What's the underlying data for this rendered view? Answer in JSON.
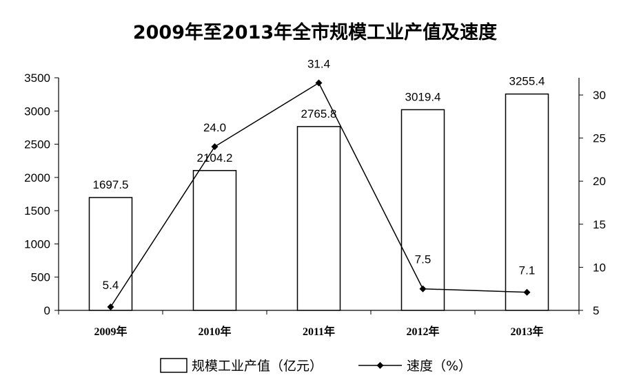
{
  "chart_data": {
    "type": "bar",
    "title": "2009年至2013年全市规模工业产值及速度",
    "categories": [
      "2009年",
      "2010年",
      "2011年",
      "2012年",
      "2013年"
    ],
    "series": [
      {
        "name": "规模工业产值（亿元）",
        "type": "bar",
        "axis": "left",
        "values": [
          1697.5,
          2104.2,
          2765.8,
          3019.4,
          3255.4
        ],
        "labels": [
          "1697.5",
          "2104.2",
          "2765.8",
          "3019.4",
          "3255.4"
        ]
      },
      {
        "name": "速度（%）",
        "type": "line",
        "axis": "right",
        "values": [
          5.4,
          24.0,
          31.4,
          7.5,
          7.1
        ],
        "labels": [
          "5.4",
          "24.0",
          "31.4",
          "7.5",
          "7.1"
        ]
      }
    ],
    "left_axis": {
      "ylim": [
        0,
        3500
      ],
      "ticks": [
        "0",
        "500",
        "1000",
        "1500",
        "2000",
        "2500",
        "3000",
        "3500"
      ]
    },
    "right_axis": {
      "ylim": [
        5,
        32
      ],
      "ticks": [
        "5",
        "10",
        "15",
        "20",
        "25",
        "30"
      ]
    },
    "grid": false,
    "legend": "bottom"
  }
}
